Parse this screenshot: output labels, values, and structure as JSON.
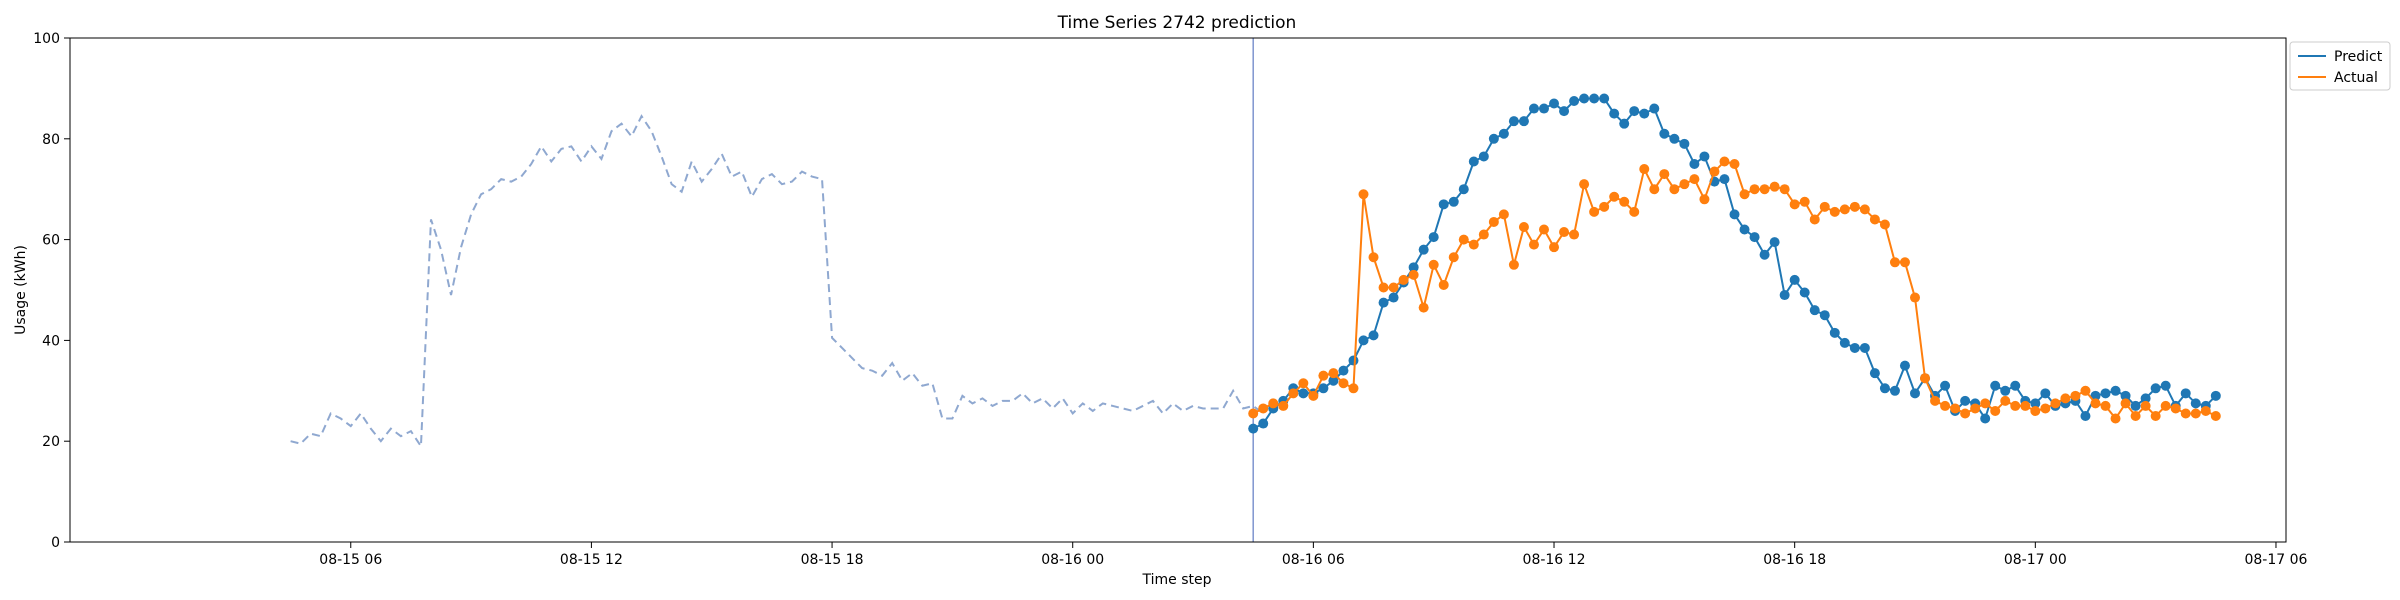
{
  "chart_data": {
    "type": "line",
    "title": "Time Series 2742 prediction",
    "xlabel": "Time step",
    "ylabel": "Usage (kWh)",
    "ylim": [
      0,
      100
    ],
    "y_ticks": [
      0,
      20,
      40,
      60,
      80,
      100
    ],
    "x_ticks": [
      {
        "t": "2024-08-15T06:00",
        "label": "08-15 06"
      },
      {
        "t": "2024-08-15T12:00",
        "label": "08-15 12"
      },
      {
        "t": "2024-08-15T18:00",
        "label": "08-15 18"
      },
      {
        "t": "2024-08-16T00:00",
        "label": "08-16 00"
      },
      {
        "t": "2024-08-16T06:00",
        "label": "08-16 06"
      },
      {
        "t": "2024-08-16T12:00",
        "label": "08-16 12"
      },
      {
        "t": "2024-08-16T18:00",
        "label": "08-16 18"
      },
      {
        "t": "2024-08-17T00:00",
        "label": "08-17 00"
      },
      {
        "t": "2024-08-17T06:00",
        "label": "08-17 06"
      }
    ],
    "xlim": [
      "2024-08-14T23:00",
      "2024-08-17T06:15"
    ],
    "grid": false,
    "legend_placement": "top-right",
    "forecast_start": "2024-08-16T04:30",
    "history": {
      "start": "2024-08-15T04:30",
      "step_minutes": 15,
      "color": "#8fa8d0",
      "values": [
        20.0,
        19.5,
        21.5,
        21.0,
        25.5,
        24.5,
        23.0,
        25.5,
        22.5,
        20.0,
        22.5,
        21.0,
        22.0,
        19.0,
        64.0,
        58.0,
        49.0,
        58.5,
        65.0,
        69.0,
        70.0,
        72.0,
        71.5,
        72.5,
        75.0,
        78.5,
        75.5,
        78.0,
        78.5,
        75.5,
        78.5,
        76.0,
        81.5,
        83.0,
        80.5,
        84.5,
        81.5,
        76.5,
        71.0,
        69.5,
        75.5,
        71.5,
        74.0,
        77.0,
        72.5,
        73.5,
        68.5,
        72.0,
        73.0,
        71.0,
        71.5,
        73.5,
        72.5,
        72.0,
        40.5,
        38.5,
        36.5,
        34.5,
        34.0,
        33.0,
        35.5,
        32.0,
        33.5,
        31.0,
        31.5,
        24.5,
        24.5,
        29.0,
        27.5,
        28.5,
        27.0,
        28.0,
        28.0,
        29.5,
        27.5,
        28.5,
        26.5,
        28.5,
        25.5,
        27.5,
        26.0,
        27.5,
        27.0,
        26.5,
        26.0,
        27.0,
        28.0,
        25.5,
        27.5,
        26.0,
        27.0,
        26.5,
        26.5,
        26.5,
        30.0,
        26.5,
        27.0,
        25.5
      ]
    },
    "series": [
      {
        "name": "Predict",
        "color": "#1f77b4",
        "start": "2024-08-16T04:30",
        "step_minutes": 15,
        "values": [
          22.5,
          23.5,
          26.5,
          28.0,
          30.5,
          29.5,
          29.5,
          30.5,
          32.0,
          34.0,
          36.0,
          40.0,
          41.0,
          47.5,
          48.5,
          51.5,
          54.5,
          58.0,
          60.5,
          67.0,
          67.5,
          70.0,
          75.5,
          76.5,
          80.0,
          81.0,
          83.5,
          83.5,
          86.0,
          86.0,
          87.0,
          85.5,
          87.5,
          88.0,
          88.0,
          88.0,
          85.0,
          83.0,
          85.5,
          85.0,
          86.0,
          81.0,
          80.0,
          79.0,
          75.0,
          76.5,
          71.5,
          72.0,
          65.0,
          62.0,
          60.5,
          57.0,
          59.5,
          49.0,
          52.0,
          49.5,
          46.0,
          45.0,
          41.5,
          39.5,
          38.5,
          38.5,
          33.5,
          30.5,
          30.0,
          35.0,
          29.5,
          32.5,
          29.0,
          31.0,
          26.0,
          28.0,
          27.5,
          24.5,
          31.0,
          30.0,
          31.0,
          28.0,
          27.5,
          29.5,
          27.0,
          27.5,
          28.0,
          25.0,
          29.0,
          29.5,
          30.0,
          29.0,
          27.0,
          28.5,
          30.5,
          31.0,
          27.0,
          29.5,
          27.5,
          27.0,
          29.0
        ]
      },
      {
        "name": "Actual",
        "color": "#ff7f0e",
        "start": "2024-08-16T04:30",
        "step_minutes": 15,
        "values": [
          25.5,
          26.5,
          27.5,
          27.0,
          29.5,
          31.5,
          29.0,
          33.0,
          33.5,
          31.5,
          30.5,
          69.0,
          56.5,
          50.5,
          50.5,
          52.0,
          53.0,
          46.5,
          55.0,
          51.0,
          56.5,
          60.0,
          59.0,
          61.0,
          63.5,
          65.0,
          55.0,
          62.5,
          59.0,
          62.0,
          58.5,
          61.5,
          61.0,
          71.0,
          65.5,
          66.5,
          68.5,
          67.5,
          65.5,
          74.0,
          70.0,
          73.0,
          70.0,
          71.0,
          72.0,
          68.0,
          73.5,
          75.5,
          75.0,
          69.0,
          70.0,
          70.0,
          70.5,
          70.0,
          67.0,
          67.5,
          64.0,
          66.5,
          65.5,
          66.0,
          66.5,
          66.0,
          64.0,
          63.0,
          55.5,
          55.5,
          48.5,
          32.5,
          28.0,
          27.0,
          26.5,
          25.5,
          26.5,
          27.5,
          26.0,
          28.0,
          27.0,
          27.0,
          26.0,
          26.5,
          27.5,
          28.5,
          29.0,
          30.0,
          27.5,
          27.0,
          24.5,
          27.5,
          25.0,
          27.0,
          25.0,
          27.0,
          26.5,
          25.5,
          25.5,
          26.0,
          25.0
        ]
      }
    ]
  }
}
